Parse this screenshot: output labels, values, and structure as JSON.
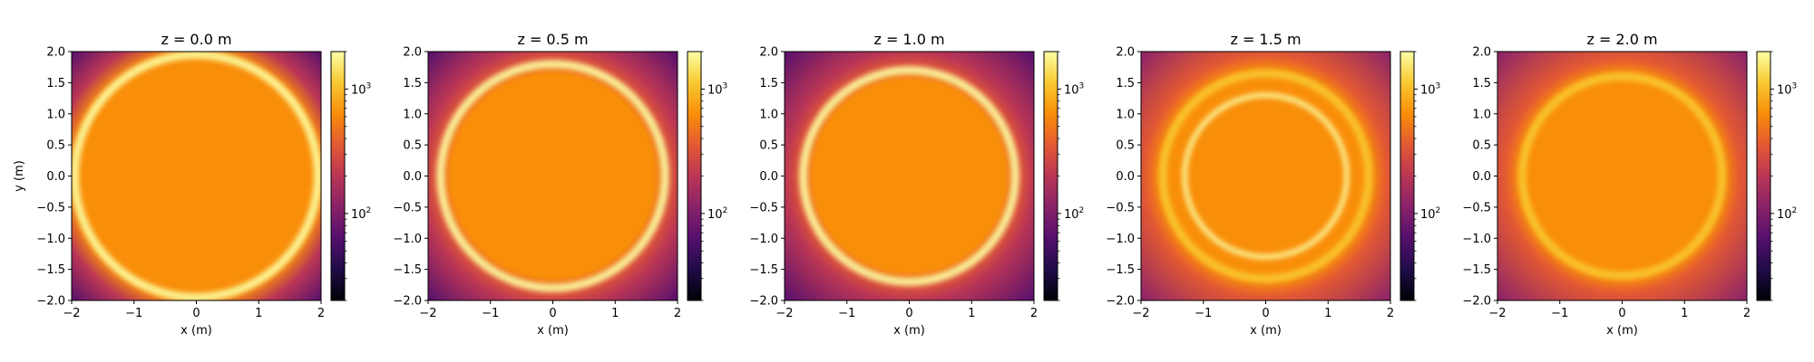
{
  "colors": {
    "colormap": "inferno",
    "stops": [
      "#000004",
      "#1f0c48",
      "#550f6d",
      "#88226a",
      "#ba3655",
      "#e35933",
      "#f98e09",
      "#f8c931",
      "#fcffa4"
    ]
  },
  "shared": {
    "xlabel": "x (m)",
    "ylabel": "y (m)",
    "ticks": [
      -2,
      -1,
      0,
      1,
      2
    ],
    "tick_labels": [
      "−2",
      "−1",
      "0",
      "1",
      "2"
    ],
    "yticks": [
      -2.0,
      -1.5,
      -1.0,
      -0.5,
      0.0,
      0.5,
      1.0,
      1.5,
      2.0
    ],
    "ytick_labels": [
      "−2.0",
      "−1.5",
      "−1.0",
      "−0.5",
      "0.0",
      "0.5",
      "1.0",
      "1.5",
      "2.0"
    ],
    "colorbar_scale": "log",
    "colorbar_range": [
      20,
      2000
    ],
    "colorbar_major_ticks": [
      {
        "value": 100,
        "base": "10",
        "exp": "2"
      },
      {
        "value": 1000,
        "base": "10",
        "exp": "3"
      }
    ]
  },
  "chart_data": [
    {
      "type": "heatmap",
      "title": "z = 0.0 m",
      "xlim": [
        -2,
        2
      ],
      "ylim": [
        -2,
        2
      ],
      "ring_radius": 1.95,
      "background_level": 700,
      "ring_level": 1800,
      "inner_ring_radius": null,
      "inner_ring_level": null,
      "outside_level": 200
    },
    {
      "type": "heatmap",
      "title": "z = 0.5 m",
      "xlim": [
        -2,
        2
      ],
      "ylim": [
        -2,
        2
      ],
      "ring_radius": 1.8,
      "background_level": 700,
      "ring_level": 1800,
      "inner_ring_radius": null,
      "inner_ring_level": null,
      "outside_level": 150
    },
    {
      "type": "heatmap",
      "title": "z = 1.0 m",
      "xlim": [
        -2,
        2
      ],
      "ylim": [
        -2,
        2
      ],
      "ring_radius": 1.7,
      "background_level": 700,
      "ring_level": 1800,
      "inner_ring_radius": null,
      "inner_ring_level": null,
      "outside_level": 150
    },
    {
      "type": "heatmap",
      "title": "z = 1.5 m",
      "xlim": [
        -2,
        2
      ],
      "ylim": [
        -2,
        2
      ],
      "ring_radius": 1.65,
      "background_level": 650,
      "ring_level": 1300,
      "inner_ring_radius": 1.3,
      "inner_ring_level": 1500,
      "outside_level": 300
    },
    {
      "type": "heatmap",
      "title": "z = 2.0 m",
      "xlim": [
        -2,
        2
      ],
      "ylim": [
        -2,
        2
      ],
      "ring_radius": 1.6,
      "background_level": 750,
      "ring_level": 1000,
      "inner_ring_radius": null,
      "inner_ring_level": null,
      "outside_level": 300
    }
  ]
}
